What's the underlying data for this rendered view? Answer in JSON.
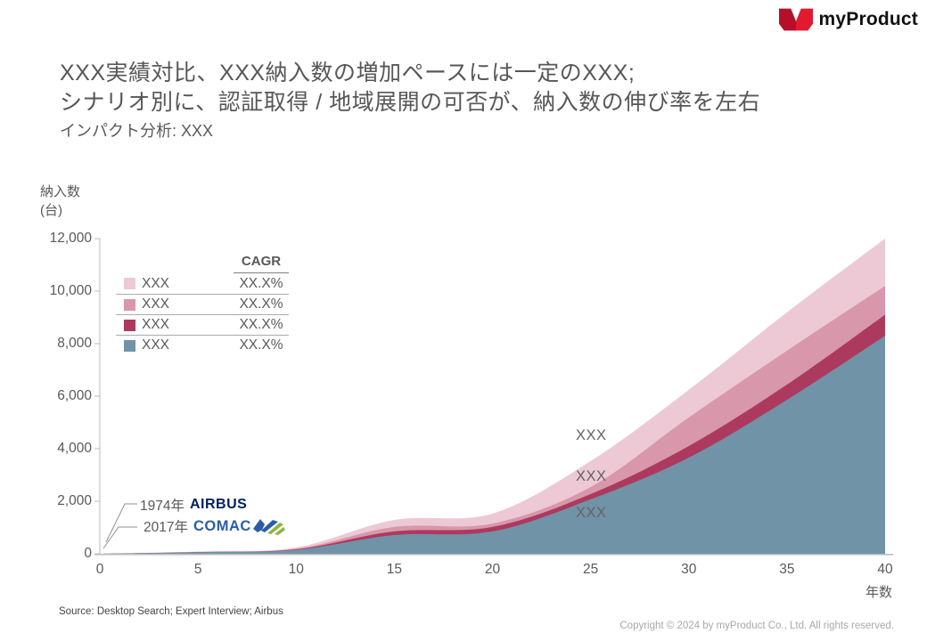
{
  "logo": {
    "brand": "myProduct",
    "icon": "m-butterfly-mark",
    "color_left": "#b50f2a",
    "color_right": "#e11931"
  },
  "title": {
    "line1": "XXX実績対比、XXX納入数の増加ペースには一定のXXX;",
    "line2": "シナリオ別に、認証取得 / 地域展開の可否が、納入数の伸び率を左右",
    "subtitle": "インパクト分析: XXX"
  },
  "chart_data": {
    "type": "area",
    "stacked": true,
    "title": "",
    "xlabel": "年数",
    "ylabel_line1": "納入数",
    "ylabel_line2": "(台)",
    "xlim": [
      0,
      40
    ],
    "ylim": [
      0,
      12000
    ],
    "grid": false,
    "legend_position": "upper-left",
    "x": [
      0,
      5,
      10,
      15,
      20,
      25,
      30,
      35,
      40
    ],
    "xticks": [
      "0",
      "5",
      "10",
      "15",
      "20",
      "25",
      "30",
      "35",
      "40"
    ],
    "yticks": [
      "0",
      "2,000",
      "4,000",
      "6,000",
      "8,000",
      "10,000",
      "12,000"
    ],
    "ytick_values": [
      0,
      2000,
      4000,
      6000,
      8000,
      10000,
      12000
    ],
    "series": [
      {
        "name": "XXX",
        "cagr": "XX.X%",
        "color": "#7093a7",
        "values": [
          0,
          60,
          150,
          710,
          850,
          2070,
          3660,
          5860,
          8300
        ]
      },
      {
        "name": "XXX",
        "cagr": "XX.X%",
        "color": "#ac3a5e",
        "values": [
          0,
          5,
          20,
          140,
          170,
          200,
          440,
          580,
          800
        ]
      },
      {
        "name": "XXX",
        "cagr": "XX.X%",
        "color": "#d897ab",
        "values": [
          0,
          5,
          20,
          170,
          130,
          270,
          1090,
          1290,
          1100
        ]
      },
      {
        "name": "XXX",
        "cagr": "XX.X%",
        "color": "#ecc9d5",
        "values": [
          0,
          10,
          50,
          270,
          380,
          990,
          1050,
          1460,
          1800
        ]
      }
    ],
    "annotations": [
      {
        "year": "1974年",
        "brand": "AIRBUS"
      },
      {
        "year": "2017年",
        "brand": "COMAC"
      }
    ],
    "point_labels": [
      "XXX",
      "XXX",
      "XXX"
    ]
  },
  "legend": {
    "header": "CAGR",
    "rows": [
      {
        "label": "XXX",
        "value": "XX.X%"
      },
      {
        "label": "XXX",
        "value": "XX.X%"
      },
      {
        "label": "XXX",
        "value": "XX.X%"
      },
      {
        "label": "XXX",
        "value": "XX.X%"
      }
    ]
  },
  "footer": {
    "source": "Source: Desktop Search; Expert Interview; Airbus",
    "copyright": "Copyright © 2024 by myProduct Co.,  Ltd.  All rights reserved."
  }
}
